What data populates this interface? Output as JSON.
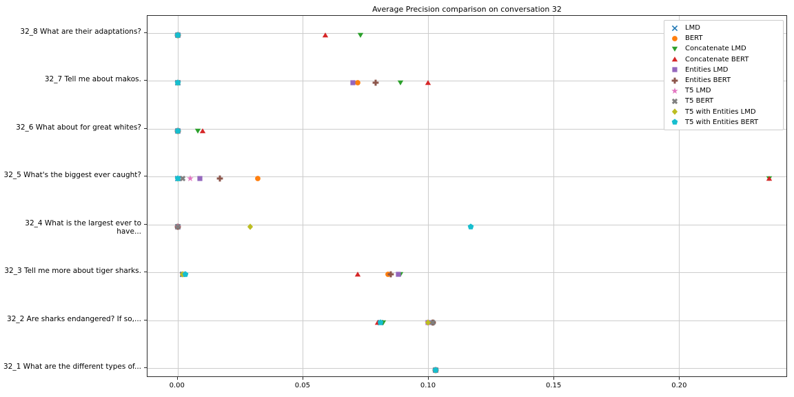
{
  "chart_data": {
    "type": "scatter",
    "title": "Average Precision comparison on conversation 32",
    "orientation": "horizontal-categories",
    "grid": true,
    "legend_position": "upper right",
    "xlim": [
      -0.012,
      0.243
    ],
    "x_ticks": [
      {
        "value": 0.0,
        "label": "0.00"
      },
      {
        "value": 0.05,
        "label": "0.05"
      },
      {
        "value": 0.1,
        "label": "0.10"
      },
      {
        "value": 0.15,
        "label": "0.15"
      },
      {
        "value": 0.2,
        "label": "0.20"
      }
    ],
    "categories": [
      "32_8 What are their adaptations?",
      "32_7 Tell me about makos.",
      "32_6 What about for great whites?",
      "32_5 What's the biggest ever caught?",
      "32_4 What is the largest ever to have...",
      "32_3 Tell me more about tiger sharks.",
      "32_2 Are sharks endangered? If so,...",
      "32_1 What are the different types of..."
    ],
    "series": [
      {
        "name": "LMD",
        "marker": "x",
        "color": "#1f77b4",
        "values": [
          0.0,
          0.0,
          0.0,
          0.0,
          0.0,
          0.002,
          0.081,
          0.103
        ]
      },
      {
        "name": "BERT",
        "marker": "o",
        "color": "#ff7f0e",
        "values": [
          0.0,
          0.072,
          0.0,
          0.032,
          0.0,
          0.084,
          0.102,
          0.103
        ]
      },
      {
        "name": "Concatenate LMD",
        "marker": "v",
        "color": "#2ca02c",
        "values": [
          0.073,
          0.089,
          0.008,
          0.236,
          0.0,
          0.089,
          0.082,
          0.103
        ]
      },
      {
        "name": "Concatenate BERT",
        "marker": "^",
        "color": "#d62728",
        "values": [
          0.059,
          0.1,
          0.01,
          0.236,
          0.0,
          0.072,
          0.08,
          0.103
        ]
      },
      {
        "name": "Entities LMD",
        "marker": "s",
        "color": "#9467bd",
        "values": [
          0.0,
          0.07,
          0.0,
          0.009,
          0.0,
          0.088,
          0.1,
          0.103
        ]
      },
      {
        "name": "Entities BERT",
        "marker": "P",
        "color": "#8c564b",
        "values": [
          0.0,
          0.079,
          0.0,
          0.017,
          0.0,
          0.085,
          0.102,
          0.103
        ]
      },
      {
        "name": "T5 LMD",
        "marker": "*",
        "color": "#e377c2",
        "values": [
          0.0,
          0.0,
          0.0,
          0.005,
          0.0,
          0.002,
          0.1,
          0.103
        ]
      },
      {
        "name": "T5 BERT",
        "marker": "X",
        "color": "#7f7f7f",
        "values": [
          0.0,
          0.0,
          0.0,
          0.002,
          0.0,
          0.002,
          0.102,
          0.103
        ]
      },
      {
        "name": "T5 with Entities LMD",
        "marker": "D",
        "color": "#bcbd22",
        "values": [
          0.0,
          0.0,
          0.0,
          0.0,
          0.029,
          0.002,
          0.1,
          0.103
        ]
      },
      {
        "name": "T5 with Entities BERT",
        "marker": "p",
        "color": "#17becf",
        "values": [
          0.0,
          0.0,
          0.0,
          0.0,
          0.117,
          0.003,
          0.081,
          0.103
        ]
      }
    ]
  }
}
